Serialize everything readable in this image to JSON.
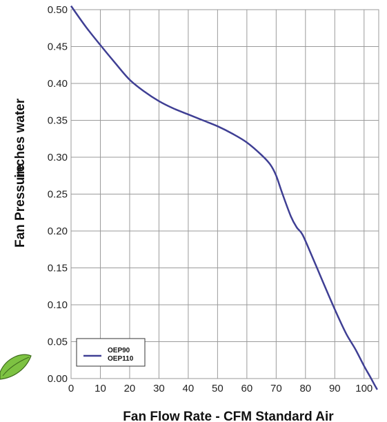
{
  "chart_data": {
    "type": "line",
    "title": "",
    "xlabel": "Fan Flow Rate - CFM Standard Air",
    "ylabel_parts": [
      "Fan Pressure",
      "inches water"
    ],
    "xlim": [
      0,
      105
    ],
    "ylim": [
      0,
      0.5
    ],
    "x_ticks": [
      0,
      10,
      20,
      30,
      40,
      50,
      60,
      70,
      80,
      90,
      100
    ],
    "y_ticks": [
      "0.00",
      "0.05",
      "0.10",
      "0.15",
      "0.20",
      "0.25",
      "0.30",
      "0.35",
      "0.40",
      "0.45",
      "0.50"
    ],
    "grid": true,
    "legend": {
      "placement": "bottom-left",
      "entries": [
        "OEP90",
        "OEP110"
      ]
    },
    "series": [
      {
        "name": "OEP90 / OEP110",
        "color": "#3f3f94",
        "x": [
          0,
          5,
          10,
          15,
          20,
          25,
          30,
          35,
          40,
          45,
          50,
          55,
          60,
          65,
          68,
          70,
          72,
          75,
          77,
          79,
          82,
          85,
          88,
          91,
          94,
          97,
          100,
          102,
          103.5,
          104.5
        ],
        "y": [
          0.505,
          0.477,
          0.452,
          0.428,
          0.405,
          0.389,
          0.376,
          0.366,
          0.358,
          0.35,
          0.342,
          0.332,
          0.32,
          0.303,
          0.29,
          0.275,
          0.252,
          0.22,
          0.205,
          0.195,
          0.168,
          0.14,
          0.112,
          0.085,
          0.06,
          0.04,
          0.017,
          0.003,
          -0.008,
          -0.015
        ]
      }
    ]
  },
  "decoration": {
    "leaf_icon": "leaf-icon",
    "leaf_color": "#7dc242"
  }
}
